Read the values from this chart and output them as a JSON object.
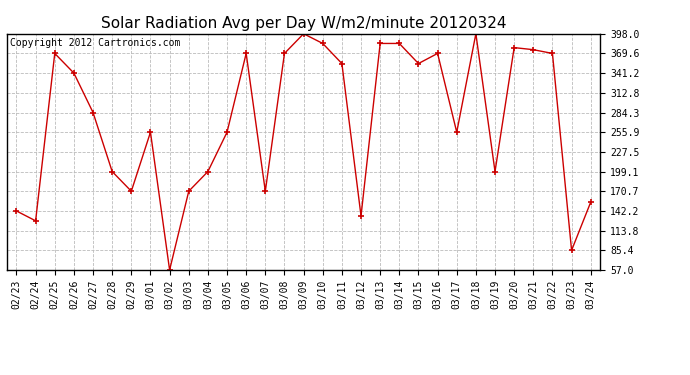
{
  "title": "Solar Radiation Avg per Day W/m2/minute 20120324",
  "copyright": "Copyright 2012 Cartronics.com",
  "dates": [
    "02/23",
    "02/24",
    "02/25",
    "02/26",
    "02/27",
    "02/28",
    "02/29",
    "03/01",
    "03/02",
    "03/03",
    "03/04",
    "03/05",
    "03/06",
    "03/07",
    "03/08",
    "03/09",
    "03/10",
    "03/11",
    "03/12",
    "03/13",
    "03/14",
    "03/15",
    "03/16",
    "03/17",
    "03/18",
    "03/19",
    "03/20",
    "03/21",
    "03/22",
    "03/23",
    "03/24"
  ],
  "values": [
    142.2,
    128.0,
    369.6,
    341.2,
    284.3,
    199.1,
    170.7,
    255.9,
    57.0,
    170.7,
    199.1,
    255.9,
    369.6,
    170.7,
    369.6,
    398.0,
    384.0,
    355.0,
    135.0,
    384.0,
    384.0,
    355.0,
    369.6,
    255.9,
    398.0,
    199.1,
    378.0,
    375.0,
    369.6,
    85.4,
    155.0
  ],
  "ylim": [
    57.0,
    398.0
  ],
  "yticks": [
    57.0,
    85.4,
    113.8,
    142.2,
    170.7,
    199.1,
    227.5,
    255.9,
    284.3,
    312.8,
    341.2,
    369.6,
    398.0
  ],
  "line_color": "#cc0000",
  "marker": "+",
  "bg_color": "#ffffff",
  "grid_color": "#bbbbbb",
  "title_fontsize": 11,
  "copyright_fontsize": 7,
  "tick_fontsize": 7
}
